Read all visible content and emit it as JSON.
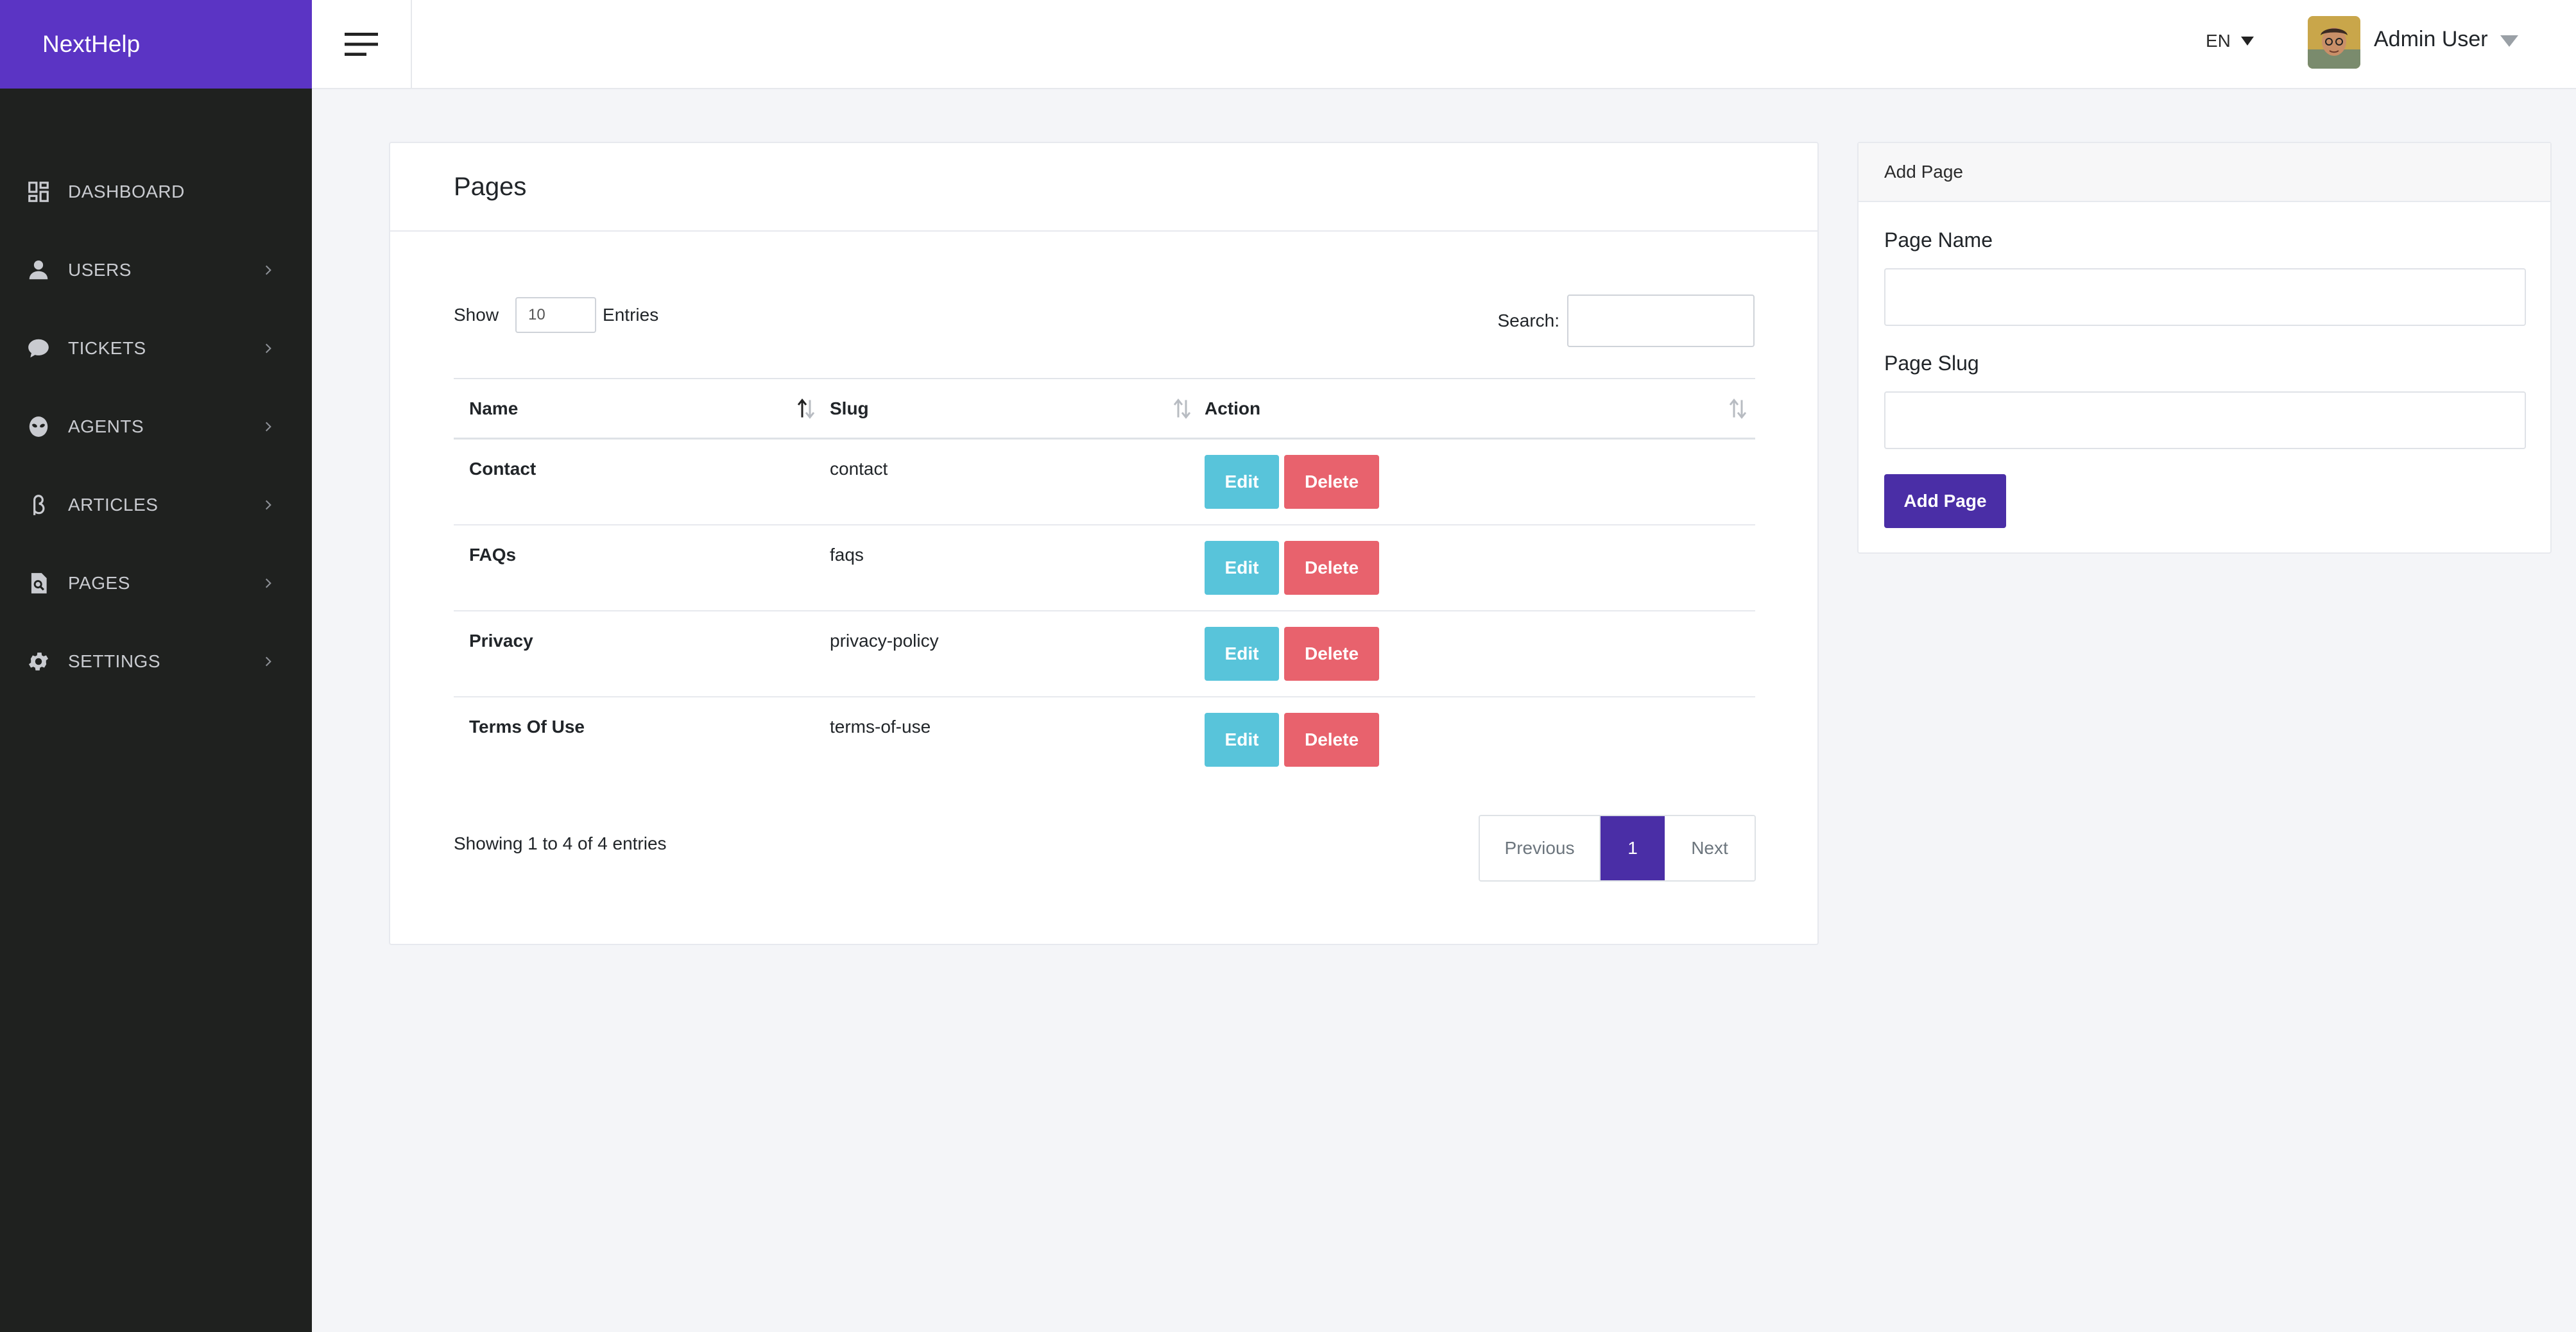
{
  "brand": {
    "name": "NextHelp",
    "color": "#5b34c4"
  },
  "sidebar": {
    "items": [
      {
        "label": "DASHBOARD",
        "icon": "dashboard-icon",
        "has_submenu": false
      },
      {
        "label": "USERS",
        "icon": "user-icon",
        "has_submenu": true
      },
      {
        "label": "TICKETS",
        "icon": "chat-bubble-icon",
        "has_submenu": true
      },
      {
        "label": "AGENTS",
        "icon": "alien-icon",
        "has_submenu": true
      },
      {
        "label": "ARTICLES",
        "icon": "beta-icon",
        "has_submenu": true
      },
      {
        "label": "PAGES",
        "icon": "page-search-icon",
        "has_submenu": true
      },
      {
        "label": "SETTINGS",
        "icon": "gear-icon",
        "has_submenu": true
      }
    ]
  },
  "topbar": {
    "menu_icon": "hamburger-icon",
    "language": "EN",
    "user_name": "Admin User"
  },
  "pages_card": {
    "title": "Pages",
    "show_label": "Show",
    "entries_value": "10",
    "entries_label": "Entries",
    "search_label": "Search:",
    "search_value": "",
    "columns": [
      "Name",
      "Slug",
      "Action"
    ],
    "rows": [
      {
        "name": "Contact",
        "slug": "contact"
      },
      {
        "name": "FAQs",
        "slug": "faqs"
      },
      {
        "name": "Privacy",
        "slug": "privacy-policy"
      },
      {
        "name": "Terms Of Use",
        "slug": "terms-of-use"
      }
    ],
    "edit_label": "Edit",
    "delete_label": "Delete",
    "showing_text": "Showing 1 to 4 of 4 entries",
    "pagination": {
      "previous": "Previous",
      "current": "1",
      "next": "Next"
    }
  },
  "add_page": {
    "header": "Add Page",
    "name_label": "Page Name",
    "name_value": "",
    "slug_label": "Page Slug",
    "slug_value": "",
    "button_label": "Add Page"
  },
  "colors": {
    "sidebar_bg": "#1f211f",
    "accent": "#4a2ea6",
    "edit": "#58c4da",
    "delete": "#e8626d"
  }
}
